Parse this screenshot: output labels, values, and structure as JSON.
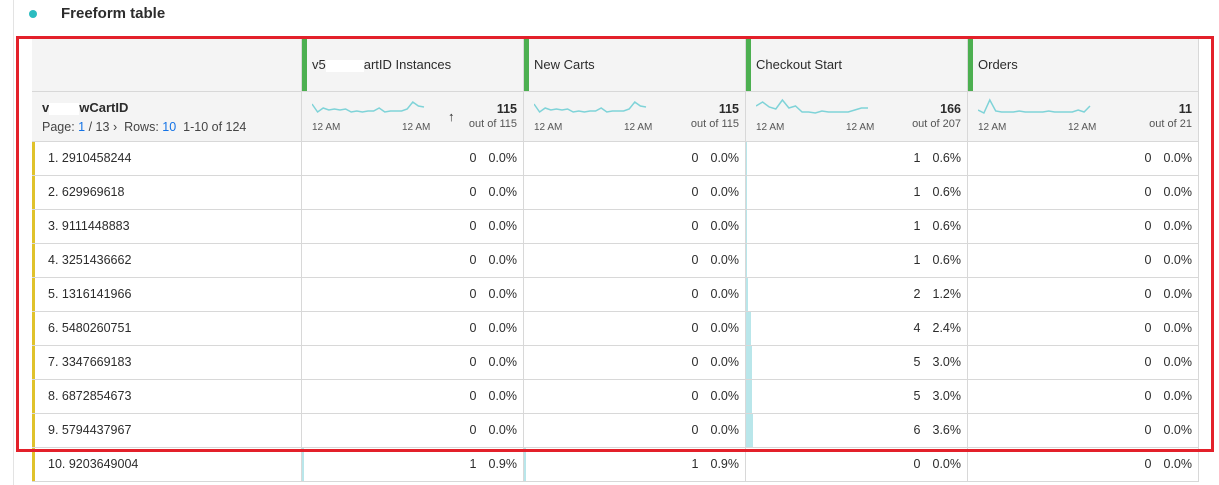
{
  "panel": {
    "title": "Freeform table",
    "dot_color": "#2bbcc0"
  },
  "dimension": {
    "name_prefix": "v",
    "name_suffix": "wCartID",
    "page_label": "Page:",
    "page": "1",
    "pages": "/ 13",
    "rows_label": "Rows:",
    "rows": "10",
    "range": "1-10 of 124"
  },
  "metrics": [
    {
      "label_prefix": "v5",
      "label_suffix": "artID Instances",
      "total": "115",
      "out_of": "out of 115",
      "axis": [
        "12 AM",
        "12 AM"
      ],
      "spark": [
        4,
        12,
        8,
        10,
        9,
        10,
        9,
        12,
        11,
        12,
        11,
        11,
        8,
        12,
        11,
        11,
        11,
        9,
        2,
        6,
        7
      ]
    },
    {
      "label": "New Carts",
      "total": "115",
      "out_of": "out of 115",
      "axis": [
        "12 AM",
        "12 AM"
      ],
      "spark": [
        4,
        12,
        8,
        10,
        9,
        10,
        9,
        12,
        11,
        12,
        11,
        11,
        8,
        12,
        11,
        11,
        11,
        9,
        2,
        6,
        7
      ]
    },
    {
      "label": "Checkout Start",
      "total": "166",
      "out_of": "out of 207",
      "axis": [
        "12 AM",
        "12 AM"
      ],
      "spark": [
        6,
        2,
        7,
        9,
        0,
        8,
        6,
        12,
        12,
        13,
        11,
        12,
        12,
        12,
        12,
        10,
        8,
        8
      ]
    },
    {
      "label": "Orders",
      "total": "11",
      "out_of": "out of 21",
      "axis": [
        "12 AM",
        "12 AM"
      ],
      "spark": [
        10,
        13,
        0,
        11,
        12,
        12,
        12,
        11,
        12,
        12,
        12,
        12,
        11,
        12,
        12,
        12,
        12,
        10,
        12,
        6
      ]
    }
  ],
  "sort_icon": "arrow-up-icon",
  "rows": [
    {
      "id": "1. 2910458244",
      "v": [
        [
          "0",
          "0.0%"
        ],
        [
          "0",
          "0.0%"
        ],
        [
          "1",
          "0.6%"
        ],
        [
          "0",
          "0.0%"
        ]
      ],
      "p": [
        0,
        0,
        0.6,
        0
      ]
    },
    {
      "id": "2. 629969618",
      "v": [
        [
          "0",
          "0.0%"
        ],
        [
          "0",
          "0.0%"
        ],
        [
          "1",
          "0.6%"
        ],
        [
          "0",
          "0.0%"
        ]
      ],
      "p": [
        0,
        0,
        0.6,
        0
      ]
    },
    {
      "id": "3. 9111448883",
      "v": [
        [
          "0",
          "0.0%"
        ],
        [
          "0",
          "0.0%"
        ],
        [
          "1",
          "0.6%"
        ],
        [
          "0",
          "0.0%"
        ]
      ],
      "p": [
        0,
        0,
        0.6,
        0
      ]
    },
    {
      "id": "4. 3251436662",
      "v": [
        [
          "0",
          "0.0%"
        ],
        [
          "0",
          "0.0%"
        ],
        [
          "1",
          "0.6%"
        ],
        [
          "0",
          "0.0%"
        ]
      ],
      "p": [
        0,
        0,
        0.6,
        0
      ]
    },
    {
      "id": "5. 1316141966",
      "v": [
        [
          "0",
          "0.0%"
        ],
        [
          "0",
          "0.0%"
        ],
        [
          "2",
          "1.2%"
        ],
        [
          "0",
          "0.0%"
        ]
      ],
      "p": [
        0,
        0,
        1.2,
        0
      ]
    },
    {
      "id": "6. 5480260751",
      "v": [
        [
          "0",
          "0.0%"
        ],
        [
          "0",
          "0.0%"
        ],
        [
          "4",
          "2.4%"
        ],
        [
          "0",
          "0.0%"
        ]
      ],
      "p": [
        0,
        0,
        2.4,
        0
      ]
    },
    {
      "id": "7. 3347669183",
      "v": [
        [
          "0",
          "0.0%"
        ],
        [
          "0",
          "0.0%"
        ],
        [
          "5",
          "3.0%"
        ],
        [
          "0",
          "0.0%"
        ]
      ],
      "p": [
        0,
        0,
        3.0,
        0
      ]
    },
    {
      "id": "8. 6872854673",
      "v": [
        [
          "0",
          "0.0%"
        ],
        [
          "0",
          "0.0%"
        ],
        [
          "5",
          "3.0%"
        ],
        [
          "0",
          "0.0%"
        ]
      ],
      "p": [
        0,
        0,
        3.0,
        0
      ]
    },
    {
      "id": "9. 5794437967",
      "v": [
        [
          "0",
          "0.0%"
        ],
        [
          "0",
          "0.0%"
        ],
        [
          "6",
          "3.6%"
        ],
        [
          "0",
          "0.0%"
        ]
      ],
      "p": [
        0,
        0,
        3.6,
        0
      ]
    },
    {
      "id": "10. 9203649004",
      "v": [
        [
          "1",
          "0.9%"
        ],
        [
          "1",
          "0.9%"
        ],
        [
          "0",
          "0.0%"
        ],
        [
          "0",
          "0.0%"
        ]
      ],
      "p": [
        0.9,
        0.9,
        0,
        0
      ]
    }
  ],
  "colors": {
    "metric_marker": "#4caf50",
    "row_marker": "#e0c22b",
    "bar": "#b9e6ea",
    "spark": "#7fd3d8",
    "highlight": "#e3202a"
  }
}
